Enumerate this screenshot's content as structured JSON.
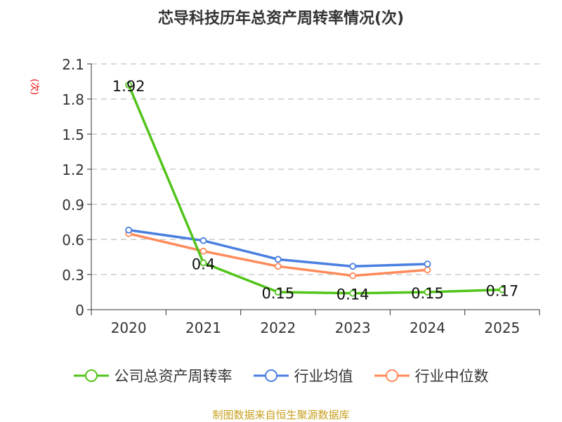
{
  "chart_data": {
    "type": "line",
    "title": "芯导科技历年总资产周转率情况(次)",
    "ylabel": "(次)",
    "categories": [
      "2020",
      "2021",
      "2022",
      "2023",
      "2024",
      "2025"
    ],
    "ylim": [
      0,
      2.1
    ],
    "yticks": [
      "0",
      "0.3",
      "0.6",
      "0.9",
      "1.2",
      "1.5",
      "1.8",
      "2.1"
    ],
    "grid": true,
    "legend_position": "bottom",
    "series": [
      {
        "name": "公司总资产周转率",
        "color": "#52c41a",
        "values": [
          1.92,
          0.4,
          0.15,
          0.14,
          0.15,
          0.17
        ],
        "labels": [
          "1.92",
          "0.4",
          "0.15",
          "0.14",
          "0.15",
          "0.17"
        ]
      },
      {
        "name": "行业均值",
        "color": "#4a7fe0",
        "values": [
          0.68,
          0.59,
          0.43,
          0.37,
          0.39,
          null
        ]
      },
      {
        "name": "行业中位数",
        "color": "#ff8a5b",
        "values": [
          0.65,
          0.5,
          0.37,
          0.29,
          0.34,
          null
        ]
      }
    ]
  },
  "source": "制图数据来自恒生聚源数据库"
}
